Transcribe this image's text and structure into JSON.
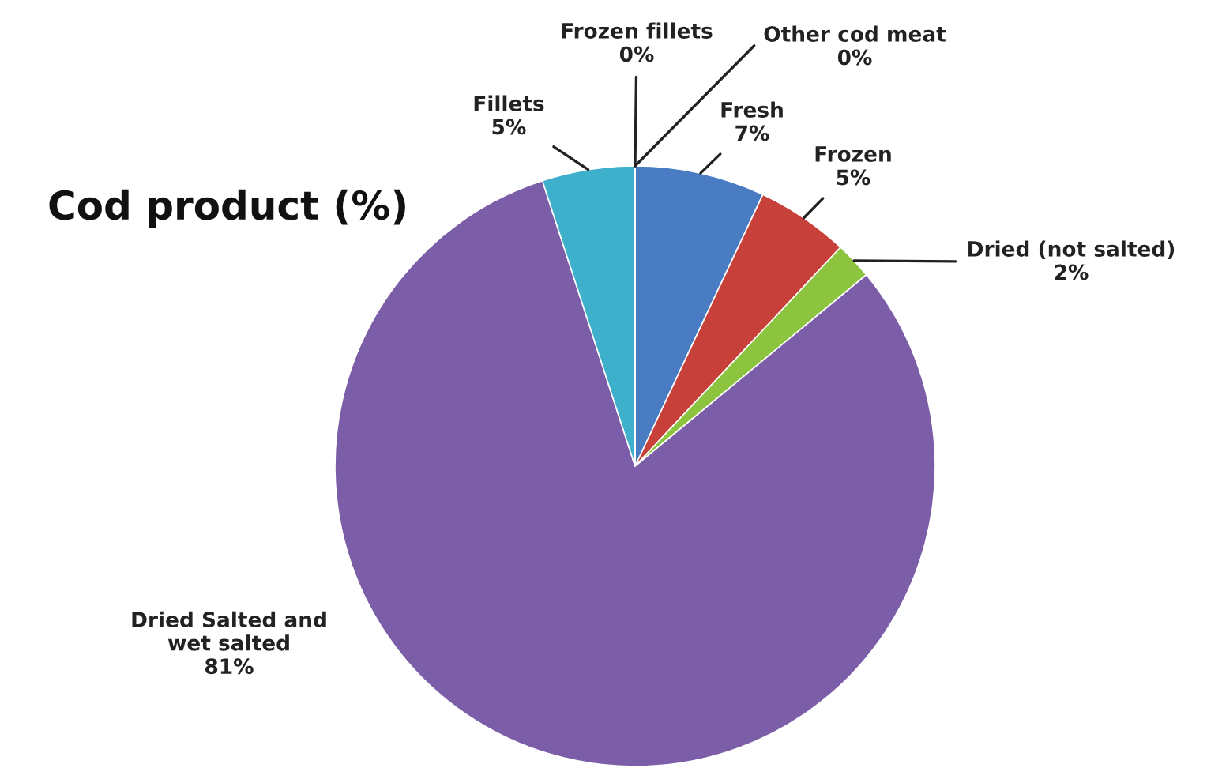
{
  "chart_data": {
    "type": "pie",
    "title": "Cod product (%)",
    "categories": [
      "Fresh",
      "Frozen",
      "Dried (not salted)",
      "Dried Salted and wet salted",
      "Fillets",
      "Frozen fillets",
      "Other cod meat"
    ],
    "values": [
      7,
      5,
      2,
      81,
      5,
      0,
      0
    ],
    "value_labels": [
      "7%",
      "5%",
      "2%",
      "81%",
      "5%",
      "0%",
      "0%"
    ],
    "colors": [
      "#4a7cc4",
      "#c8403a",
      "#8cc43f",
      "#7b5ea7",
      "#3fb0cc",
      "#e07b2a",
      "#4f81bd"
    ],
    "legend": false
  }
}
